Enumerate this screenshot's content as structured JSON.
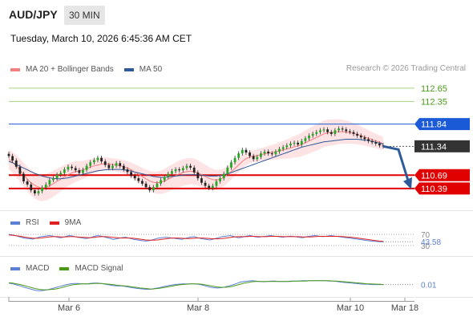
{
  "header": {
    "symbol": "AUD/JPY",
    "timeframe": "30 MIN",
    "datetime": "Tuesday, March 10, 2026 6:45:36 AM CET",
    "credit": "Research © 2026 Trading Central"
  },
  "legend_main": [
    {
      "name": "MA 20 + Bollinger Bands",
      "color": "#f47f7f"
    },
    {
      "name": "MA 50",
      "color": "#2f5a9a"
    }
  ],
  "legend_rsi": [
    {
      "name": "RSI",
      "color": "#5a7fd6"
    },
    {
      "name": "9MA",
      "color": "#e02020"
    }
  ],
  "legend_macd": [
    {
      "name": "MACD",
      "color": "#5a7fd6"
    },
    {
      "name": "MACD Signal",
      "color": "#4a9a1a"
    }
  ],
  "colors": {
    "resistance": "#4a9a1a",
    "pivot": "#1a5ad6",
    "support": "#e00000",
    "last": "#333333",
    "arrow": "#2f5a9a",
    "bull": "#22aa22",
    "bear": "#222222"
  },
  "chart_data": {
    "type": "line",
    "x_ticks": [
      "Mar 6",
      "Mar 8",
      "Mar 10",
      "Mar 18"
    ],
    "ylim": [
      109.9,
      112.9
    ],
    "levels": [
      {
        "value": 112.65,
        "label": "112.65",
        "kind": "resistance"
      },
      {
        "value": 112.35,
        "label": "112.35",
        "kind": "resistance"
      },
      {
        "value": 111.84,
        "label": "111.84",
        "kind": "pivot"
      },
      {
        "value": 111.34,
        "label": "111.34",
        "kind": "last"
      },
      {
        "value": 110.69,
        "label": "110.69",
        "kind": "support"
      },
      {
        "value": 110.39,
        "label": "110.39",
        "kind": "support"
      }
    ],
    "price_series": [
      111.12,
      111.02,
      110.88,
      110.72,
      110.55,
      110.48,
      110.35,
      110.28,
      110.33,
      110.41,
      110.48,
      110.58,
      110.62,
      110.7,
      110.74,
      110.82,
      110.88,
      110.85,
      110.8,
      110.74,
      110.81,
      110.9,
      110.98,
      111.03,
      111.08,
      111.0,
      110.92,
      110.85,
      110.9,
      110.96,
      110.9,
      110.82,
      110.76,
      110.68,
      110.62,
      110.56,
      110.5,
      110.42,
      110.35,
      110.42,
      110.5,
      110.58,
      110.65,
      110.72,
      110.78,
      110.82,
      110.8,
      110.85,
      110.9,
      110.86,
      110.75,
      110.62,
      110.52,
      110.45,
      110.4,
      110.45,
      110.55,
      110.62,
      110.72,
      110.86,
      110.98,
      111.08,
      111.18,
      111.26,
      111.2,
      111.12,
      111.05,
      111.1,
      111.18,
      111.22,
      111.18,
      111.16,
      111.22,
      111.28,
      111.32,
      111.36,
      111.4,
      111.42,
      111.38,
      111.46,
      111.52,
      111.58,
      111.62,
      111.66,
      111.7,
      111.72,
      111.66,
      111.62,
      111.7,
      111.74,
      111.72,
      111.68,
      111.66,
      111.62,
      111.58,
      111.54,
      111.5,
      111.46,
      111.43,
      111.4,
      111.36,
      111.34
    ],
    "ma20_series": [
      111.05,
      110.98,
      110.9,
      110.8,
      110.7,
      110.6,
      110.52,
      110.46,
      110.42,
      110.4,
      110.42,
      110.45,
      110.5,
      110.55,
      110.6,
      110.65,
      110.7,
      110.74,
      110.77,
      110.79,
      110.81,
      110.84,
      110.87,
      110.9,
      110.92,
      110.94,
      110.95,
      110.94,
      110.93,
      110.92,
      110.9,
      110.88,
      110.85,
      110.81,
      110.76,
      110.71,
      110.66,
      110.61,
      110.56,
      110.53,
      110.52,
      110.53,
      110.56,
      110.6,
      110.64,
      110.68,
      110.72,
      110.75,
      110.77,
      110.78,
      110.77,
      110.74,
      110.7,
      110.66,
      110.62,
      110.59,
      110.58,
      110.6,
      110.64,
      110.7,
      110.77,
      110.84,
      110.92,
      111.0,
      111.06,
      111.1,
      111.12,
      111.13,
      111.15,
      111.17,
      111.19,
      111.2,
      111.22,
      111.24,
      111.26,
      111.28,
      111.3,
      111.33,
      111.35,
      111.38,
      111.42,
      111.46,
      111.5,
      111.54,
      111.58,
      111.62,
      111.64,
      111.65,
      111.66,
      111.67,
      111.67,
      111.66,
      111.65,
      111.63,
      111.61,
      111.58,
      111.55,
      111.52,
      111.49,
      111.46,
      111.43,
      111.4
    ],
    "ma50_series": [
      111.0,
      110.97,
      110.93,
      110.89,
      110.85,
      110.81,
      110.77,
      110.73,
      110.7,
      110.67,
      110.65,
      110.63,
      110.62,
      110.61,
      110.61,
      110.62,
      110.63,
      110.65,
      110.67,
      110.69,
      110.71,
      110.73,
      110.75,
      110.77,
      110.79,
      110.8,
      110.81,
      110.82,
      110.82,
      110.82,
      110.82,
      110.81,
      110.8,
      110.78,
      110.76,
      110.74,
      110.72,
      110.7,
      110.68,
      110.66,
      110.65,
      110.64,
      110.64,
      110.65,
      110.66,
      110.67,
      110.68,
      110.69,
      110.7,
      110.7,
      110.7,
      110.7,
      110.69,
      110.68,
      110.67,
      110.67,
      110.67,
      110.68,
      110.7,
      110.72,
      110.75,
      110.78,
      110.81,
      110.84,
      110.87,
      110.9,
      110.93,
      110.96,
      110.99,
      111.02,
      111.05,
      111.08,
      111.11,
      111.14,
      111.17,
      111.2,
      111.23,
      111.26,
      111.29,
      111.32,
      111.34,
      111.36,
      111.38,
      111.4,
      111.42,
      111.44,
      111.45,
      111.46,
      111.47,
      111.48,
      111.49,
      111.5,
      111.5,
      111.5,
      111.5,
      111.49,
      111.48,
      111.47,
      111.45,
      111.43,
      111.41,
      111.39
    ],
    "forecast": {
      "from": 111.34,
      "to": 110.39
    },
    "rsi": {
      "label": "43.58",
      "levels": [
        70,
        30
      ],
      "level_labels": [
        "70",
        "30"
      ],
      "ylim": [
        15,
        85
      ],
      "rsi_series": [
        70,
        68,
        64,
        60,
        56,
        55,
        53,
        58,
        62,
        64,
        66,
        64,
        60,
        58,
        62,
        66,
        64,
        60,
        58,
        55,
        57,
        62,
        66,
        64,
        60,
        56,
        52,
        55,
        58,
        60,
        56,
        52,
        50,
        48,
        46,
        48,
        52,
        56,
        58,
        60,
        58,
        56,
        54,
        52,
        56,
        60,
        62,
        58,
        54,
        52,
        50,
        54,
        58,
        62,
        64,
        66,
        62,
        58,
        60,
        64,
        66,
        62,
        60,
        62,
        64,
        66,
        64,
        62,
        60,
        62,
        64,
        62,
        60,
        58,
        62,
        64,
        66,
        64,
        62,
        64,
        66,
        64,
        62,
        60,
        58,
        56,
        54,
        52,
        50,
        48,
        46,
        45,
        44,
        43.58
      ],
      "ma9_series": [
        68,
        67,
        65,
        63,
        60,
        58,
        56,
        56,
        57,
        59,
        61,
        62,
        62,
        61,
        61,
        62,
        62,
        61,
        60,
        59,
        58,
        59,
        61,
        62,
        62,
        61,
        59,
        58,
        57,
        57,
        57,
        56,
        54,
        52,
        50,
        49,
        49,
        50,
        52,
        54,
        56,
        57,
        57,
        56,
        55,
        55,
        56,
        57,
        57,
        56,
        55,
        54,
        54,
        55,
        57,
        59,
        61,
        62,
        62,
        62,
        63,
        63,
        62,
        62,
        62,
        63,
        63,
        63,
        62,
        62,
        62,
        62,
        62,
        61,
        61,
        61,
        62,
        63,
        63,
        63,
        63,
        63,
        63,
        62,
        61,
        60,
        58,
        56,
        54,
        52,
        50,
        48,
        46,
        45
      ]
    },
    "macd": {
      "label": "0.01",
      "ylim": [
        -0.3,
        0.3
      ],
      "macd_series": [
        0.05,
        0.03,
        0.0,
        -0.03,
        -0.07,
        -0.1,
        -0.13,
        -0.16,
        -0.17,
        -0.16,
        -0.14,
        -0.11,
        -0.08,
        -0.05,
        -0.02,
        0.01,
        0.03,
        0.04,
        0.04,
        0.03,
        0.03,
        0.04,
        0.05,
        0.05,
        0.04,
        0.02,
        0.0,
        -0.02,
        -0.03,
        -0.03,
        -0.04,
        -0.06,
        -0.08,
        -0.1,
        -0.11,
        -0.12,
        -0.13,
        -0.12,
        -0.1,
        -0.08,
        -0.05,
        -0.03,
        -0.01,
        0.01,
        0.02,
        0.03,
        0.03,
        0.03,
        0.03,
        0.02,
        0.0,
        -0.03,
        -0.06,
        -0.08,
        -0.09,
        -0.08,
        -0.06,
        -0.03,
        0.0,
        0.04,
        0.08,
        0.1,
        0.11,
        0.12,
        0.11,
        0.1,
        0.09,
        0.1,
        0.11,
        0.11,
        0.1,
        0.1,
        0.1,
        0.11,
        0.11,
        0.11,
        0.12,
        0.12,
        0.12,
        0.12,
        0.12,
        0.12,
        0.12,
        0.11,
        0.11,
        0.1,
        0.08,
        0.07,
        0.06,
        0.05,
        0.04,
        0.03,
        0.02,
        0.02,
        0.01,
        0.01,
        0.01,
        0.01
      ],
      "signal_series": [
        0.06,
        0.05,
        0.03,
        0.01,
        -0.02,
        -0.05,
        -0.08,
        -0.11,
        -0.13,
        -0.14,
        -0.14,
        -0.13,
        -0.12,
        -0.1,
        -0.07,
        -0.04,
        -0.01,
        0.01,
        0.02,
        0.03,
        0.03,
        0.03,
        0.04,
        0.04,
        0.04,
        0.03,
        0.02,
        0.01,
        -0.01,
        -0.02,
        -0.03,
        -0.04,
        -0.06,
        -0.07,
        -0.09,
        -0.1,
        -0.11,
        -0.12,
        -0.11,
        -0.1,
        -0.08,
        -0.06,
        -0.04,
        -0.02,
        0.0,
        0.01,
        0.02,
        0.03,
        0.03,
        0.03,
        0.02,
        0.0,
        -0.02,
        -0.04,
        -0.06,
        -0.07,
        -0.07,
        -0.06,
        -0.04,
        -0.01,
        0.02,
        0.05,
        0.07,
        0.09,
        0.1,
        0.1,
        0.1,
        0.1,
        0.1,
        0.1,
        0.1,
        0.1,
        0.1,
        0.1,
        0.11,
        0.11,
        0.11,
        0.11,
        0.12,
        0.12,
        0.12,
        0.12,
        0.12,
        0.12,
        0.11,
        0.11,
        0.1,
        0.09,
        0.08,
        0.07,
        0.06,
        0.05,
        0.04,
        0.03,
        0.03,
        0.02,
        0.02,
        0.01
      ]
    }
  }
}
